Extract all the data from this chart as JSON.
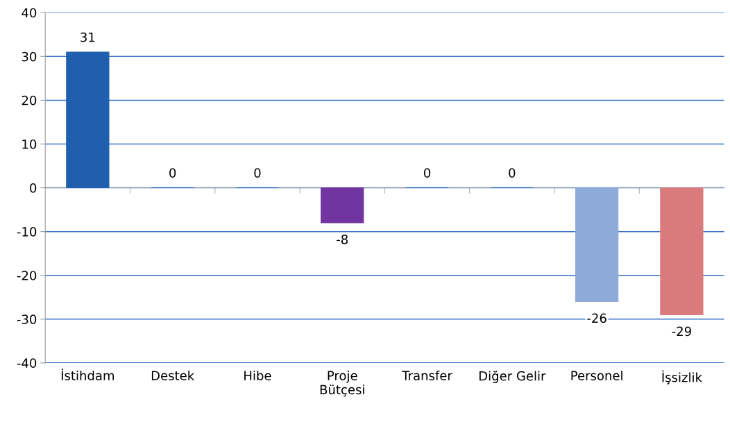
{
  "chart_data": {
    "type": "bar",
    "categories": [
      "İstihdam",
      "Destek",
      "Hibe",
      "Proje Bütçesi",
      "Transfer",
      "Diğer Gelir",
      "Personel",
      "İşsizlik"
    ],
    "values": [
      31,
      0,
      0,
      -8,
      0,
      0,
      -26,
      -29
    ],
    "colors": [
      "#1f5fad",
      "#1f5fad",
      "#1f5fad",
      "#7035a0",
      "#1f5fad",
      "#1f5fad",
      "#8eaad8",
      "#d97a7c"
    ],
    "ylim": [
      -40,
      40
    ],
    "yticks": [
      -40,
      -30,
      -20,
      -10,
      0,
      10,
      20,
      30,
      40
    ],
    "grid": "y",
    "data_labels": true,
    "legend": false
  }
}
